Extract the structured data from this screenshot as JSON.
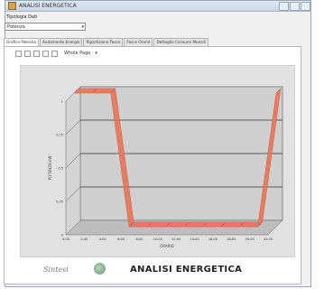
{
  "window": {
    "title": "ANALISI ENERGETICA"
  },
  "filter": {
    "label": "Tipologia Dati",
    "selected": "Potenza"
  },
  "tabs": [
    {
      "label": "Grafico Potenza",
      "active": true
    },
    {
      "label": "Andamento Energia",
      "active": false
    },
    {
      "label": "Ripartizione Fasce",
      "active": false
    },
    {
      "label": "Fasce Orarie",
      "active": false
    },
    {
      "label": "Dettaglio Consumi Mensili",
      "active": false
    }
  ],
  "toolbar": {
    "zoom_label": "Whole Page"
  },
  "chart_data": {
    "type": "area",
    "title": "",
    "xlabel": "ORARIO",
    "ylabel": "POTENZA kW",
    "x": [
      "0:00",
      "2:00",
      "4:00",
      "6:00",
      "8:00",
      "10:00",
      "12:00",
      "14:00",
      "16:00",
      "18:00",
      "20:00",
      "22:00"
    ],
    "series": [
      {
        "values": [
          1,
          1,
          1,
          0,
          0,
          0,
          0,
          0,
          0,
          0,
          0,
          1
        ]
      }
    ],
    "ylim": [
      0,
      1
    ],
    "grid": true,
    "colors": {
      "series": "#e8785c",
      "wall": "#e1e1e1",
      "gridline": "#333333"
    }
  },
  "footer": {
    "logo_text": "Sintesi",
    "title": "ANALISI ENERGETICA"
  }
}
